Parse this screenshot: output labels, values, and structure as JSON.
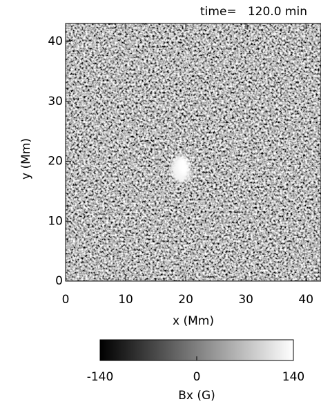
{
  "chart_data": {
    "type": "heatmap",
    "title": "time=   120.0 min",
    "x_label": "x (Mm)",
    "y_label": "y (Mm)",
    "xlim": [
      0,
      42.5
    ],
    "ylim": [
      0,
      43
    ],
    "xticks": [
      0,
      10,
      20,
      30,
      40
    ],
    "yticks": [
      0,
      10,
      20,
      30,
      40
    ],
    "colorbar": {
      "label": "Bx (G)",
      "lim": [
        -140,
        140
      ],
      "ticks": [
        -140,
        0,
        140
      ],
      "colors": [
        "#000000",
        "#ffffff"
      ]
    }
  }
}
